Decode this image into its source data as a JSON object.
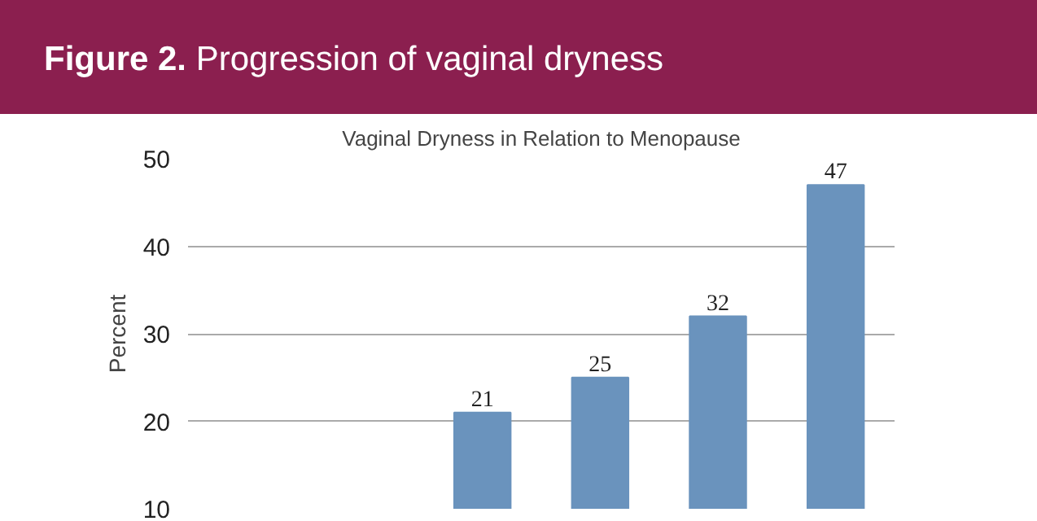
{
  "chart_data": {
    "type": "bar",
    "title": "Figure 2. Progression of vaginal dryness",
    "subtitle": "Vaginal Dryness in Relation to Menopause",
    "ylabel": "Percent",
    "categories": [
      null,
      null,
      null,
      null,
      null,
      null
    ],
    "values": [
      null,
      null,
      21,
      25,
      32,
      47
    ],
    "color": "#6a93bd",
    "data_labels": true,
    "ylim": [
      10,
      50
    ],
    "yticks": [
      10,
      20,
      30,
      40,
      50
    ],
    "grid": "y",
    "tick_labels": "y"
  }
}
